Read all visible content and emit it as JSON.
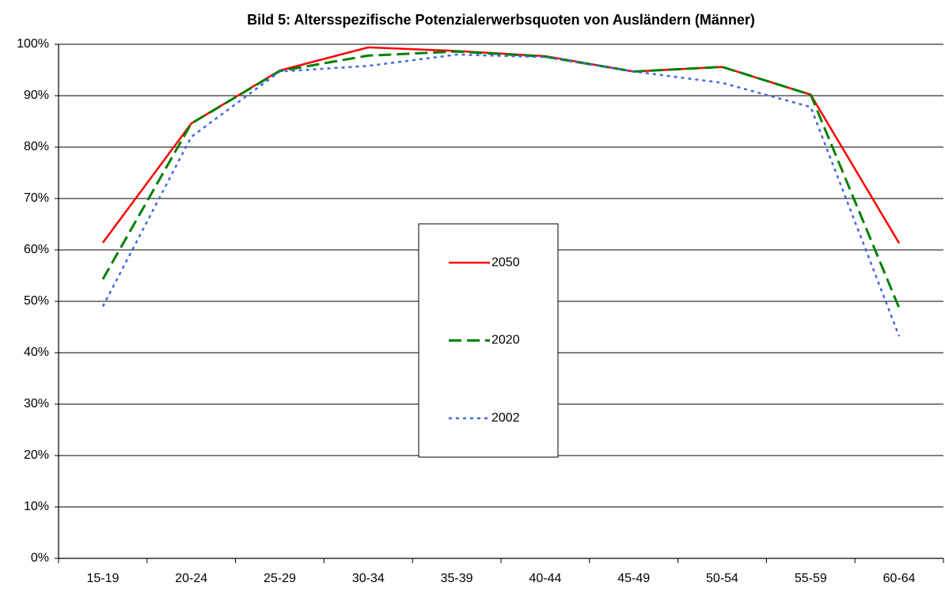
{
  "chart_data": {
    "type": "line",
    "title": "Bild 5: Altersspezifische Potenzialerwerbsquoten von Ausländern (Männer)",
    "categories": [
      "15-19",
      "20-24",
      "25-29",
      "30-34",
      "35-39",
      "40-44",
      "45-49",
      "50-54",
      "55-59",
      "60-64"
    ],
    "series": [
      {
        "name": "2050",
        "color": "#ff0000",
        "dash": "solid",
        "values": [
          61.4,
          84.6,
          94.9,
          99.4,
          98.7,
          97.7,
          94.7,
          95.6,
          90.2,
          61.3
        ]
      },
      {
        "name": "2020",
        "color": "#008000",
        "dash": "dashed",
        "values": [
          54.3,
          84.6,
          94.8,
          97.8,
          98.6,
          97.6,
          94.7,
          95.6,
          90.2,
          48.7
        ]
      },
      {
        "name": "2002",
        "color": "#4169e1",
        "dash": "dotted",
        "values": [
          49.0,
          82.0,
          94.7,
          95.8,
          98.0,
          97.5,
          94.7,
          92.5,
          87.8,
          43.2
        ]
      }
    ],
    "ylim": [
      0,
      100
    ],
    "yticks": [
      {
        "value": 0,
        "label": "0%"
      },
      {
        "value": 10,
        "label": "10%"
      },
      {
        "value": 20,
        "label": "20%"
      },
      {
        "value": 30,
        "label": "30%"
      },
      {
        "value": 40,
        "label": "40%"
      },
      {
        "value": 50,
        "label": "50%"
      },
      {
        "value": 60,
        "label": "60%"
      },
      {
        "value": 70,
        "label": "70%"
      },
      {
        "value": 80,
        "label": "80%"
      },
      {
        "value": 90,
        "label": "90%"
      },
      {
        "value": 100,
        "label": "100%"
      }
    ],
    "grid": true,
    "legend": "center"
  }
}
